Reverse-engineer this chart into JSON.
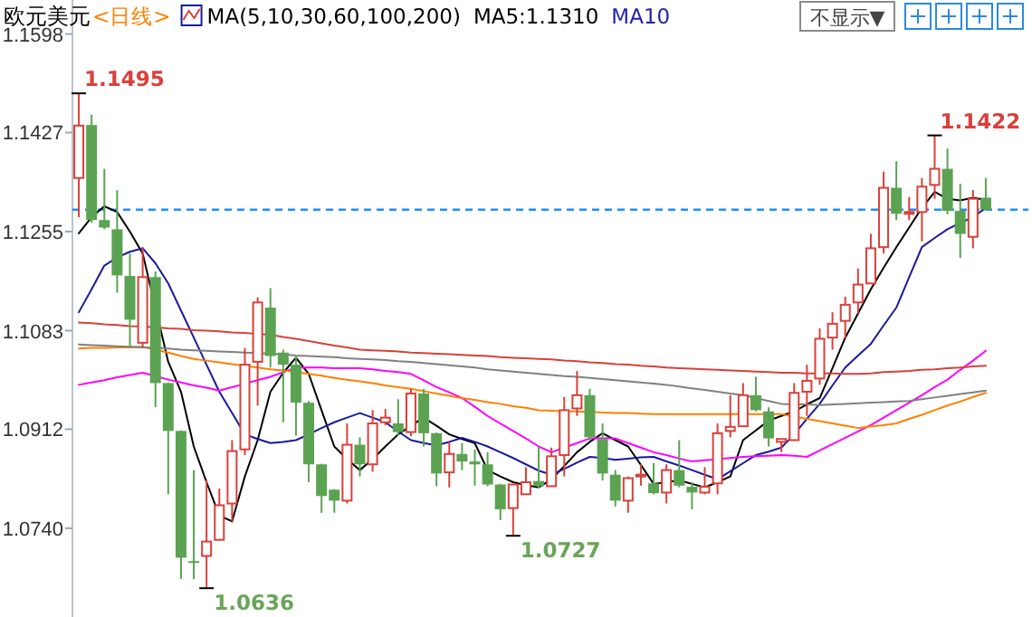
{
  "chart_data": {
    "type": "candlestick",
    "title": "欧元美元",
    "subtitle": "<日线>",
    "annotations": [
      "MA(5,10,30,60,100,200)",
      "MA5:1.1310",
      "MA10",
      "不显示▼",
      "1.1495",
      "1.0636",
      "1.0727",
      "1.1422"
    ],
    "categories": [
      null,
      null,
      null,
      null,
      null,
      null,
      null,
      null,
      null,
      null,
      null,
      null,
      null,
      null,
      null,
      null,
      null,
      null,
      null,
      null,
      null,
      null,
      null,
      null,
      null,
      null,
      null,
      null,
      null,
      null,
      null,
      null,
      null,
      null,
      null,
      null,
      null,
      null,
      null,
      null,
      null,
      null,
      null,
      null,
      null,
      null,
      null,
      null,
      null,
      null,
      null,
      null,
      null,
      null,
      null,
      null,
      null,
      null,
      null,
      null,
      null,
      null,
      null,
      null,
      null,
      null,
      null,
      null,
      null,
      null,
      null,
      null
    ],
    "ohlc": [
      [
        1.1348,
        1.1495,
        1.128,
        1.1439
      ],
      [
        1.144,
        1.1458,
        1.127,
        1.1275
      ],
      [
        1.1275,
        1.1364,
        1.1259,
        1.1262
      ],
      [
        1.1259,
        1.1327,
        1.1149,
        1.1179
      ],
      [
        1.1178,
        1.1217,
        1.1055,
        1.1102
      ],
      [
        1.1062,
        1.1228,
        1.1055,
        1.1176
      ],
      [
        1.1176,
        1.1186,
        1.095,
        1.0992
      ],
      [
        1.0992,
        1.0993,
        1.0799,
        1.0909
      ],
      [
        1.0909,
        1.091,
        1.0652,
        1.0689
      ],
      [
        1.0683,
        1.0841,
        1.0652,
        1.068
      ],
      [
        1.0692,
        1.0825,
        1.0636,
        1.0717
      ],
      [
        1.072,
        1.0809,
        1.0719,
        1.078
      ],
      [
        1.0783,
        1.0893,
        1.0752,
        1.0874
      ],
      [
        1.0877,
        1.1053,
        1.0867,
        1.1024
      ],
      [
        1.1029,
        1.1141,
        1.0953,
        1.1132
      ],
      [
        1.1123,
        1.1157,
        1.1019,
        1.1039
      ],
      [
        1.1045,
        1.105,
        1.0924,
        1.1024
      ],
      [
        1.1024,
        1.1039,
        1.0901,
        1.0958
      ],
      [
        1.0958,
        1.0961,
        1.082,
        1.0851
      ],
      [
        1.0851,
        1.0852,
        1.0767,
        1.0796
      ],
      [
        1.0807,
        1.0808,
        1.0767,
        1.0788
      ],
      [
        1.0788,
        1.0922,
        1.0783,
        1.0885
      ],
      [
        1.0885,
        1.0898,
        1.083,
        1.0851
      ],
      [
        1.0851,
        1.0945,
        1.0838,
        1.0922
      ],
      [
        1.0924,
        1.0947,
        1.0919,
        1.0932
      ],
      [
        1.0922,
        1.0964,
        1.0901,
        1.0907
      ],
      [
        1.0907,
        1.0982,
        1.09,
        1.0974
      ],
      [
        1.0974,
        1.0982,
        1.0882,
        1.0905
      ],
      [
        1.0905,
        1.0906,
        1.0813,
        1.0835
      ],
      [
        1.0837,
        1.089,
        1.0811,
        1.0869
      ],
      [
        1.0869,
        1.0888,
        1.0841,
        1.0856
      ],
      [
        1.0856,
        1.0877,
        1.0814,
        1.0851
      ],
      [
        1.0851,
        1.0872,
        1.0813,
        1.0816
      ],
      [
        1.0816,
        1.0817,
        1.0754,
        1.0773
      ],
      [
        1.0775,
        1.0817,
        1.0727,
        1.0816
      ],
      [
        1.0799,
        1.0846,
        1.0798,
        1.082
      ],
      [
        1.0822,
        1.0882,
        1.0809,
        1.0813
      ],
      [
        1.0813,
        1.088,
        1.0812,
        1.0865
      ],
      [
        1.0867,
        1.0968,
        1.083,
        1.0945
      ],
      [
        1.0948,
        1.1013,
        1.0935,
        1.0971
      ],
      [
        1.0971,
        1.0982,
        1.0893,
        1.0898
      ],
      [
        1.0895,
        1.0922,
        1.0823,
        1.0835
      ],
      [
        1.0833,
        1.0841,
        1.0778,
        1.0788
      ],
      [
        1.0788,
        1.083,
        1.0767,
        1.0827
      ],
      [
        1.083,
        1.0851,
        1.0814,
        1.0833
      ],
      [
        1.0818,
        1.0853,
        1.0799,
        1.0801
      ],
      [
        1.0802,
        1.0851,
        1.0783,
        1.0841
      ],
      [
        1.0841,
        1.0893,
        1.0811,
        1.0814
      ],
      [
        1.0812,
        1.082,
        1.0773,
        1.0802
      ],
      [
        1.0802,
        1.0846,
        1.0799,
        1.0812
      ],
      [
        1.0818,
        1.0922,
        1.0799,
        1.0905
      ],
      [
        1.0909,
        1.0971,
        1.0898,
        1.0916
      ],
      [
        1.0917,
        1.0992,
        1.0916,
        1.0971
      ],
      [
        1.0971,
        1.1003,
        1.0943,
        1.0945
      ],
      [
        1.0943,
        1.095,
        1.0882,
        1.0896
      ],
      [
        1.089,
        1.0895,
        1.0872,
        1.0895
      ],
      [
        1.0893,
        1.0992,
        1.0892,
        1.0975
      ],
      [
        1.0977,
        1.1024,
        1.0935,
        1.0996
      ],
      [
        1.1,
        1.1087,
        1.0989,
        1.1069
      ],
      [
        1.1071,
        1.1115,
        1.105,
        1.1095
      ],
      [
        1.11,
        1.1142,
        1.107,
        1.1128
      ],
      [
        1.1132,
        1.1191,
        1.1113,
        1.1163
      ],
      [
        1.1165,
        1.1251,
        1.1164,
        1.1226
      ],
      [
        1.1228,
        1.1359,
        1.1217,
        1.1331
      ],
      [
        1.1331,
        1.1377,
        1.1275,
        1.1286
      ],
      [
        1.1286,
        1.1315,
        1.1275,
        1.1289
      ],
      [
        1.1289,
        1.1348,
        1.1238,
        1.1333
      ],
      [
        1.1336,
        1.1422,
        1.1312,
        1.1364
      ],
      [
        1.1364,
        1.1399,
        1.1285,
        1.1291
      ],
      [
        1.1291,
        1.1338,
        1.1209,
        1.1251
      ],
      [
        1.1246,
        1.1327,
        1.1226,
        1.1312
      ],
      [
        1.1314,
        1.1348,
        1.1291,
        1.1293
      ]
    ],
    "series": [
      {
        "type": "line",
        "color": "#000000",
        "values": [
          1.1252,
          1.128,
          1.1299,
          1.1289,
          1.1255,
          1.1217,
          null,
          1.1029,
          1.0977,
          1.0882,
          1.082,
          1.0762,
          1.0752,
          1.083,
          1.0893,
          1.0977,
          1.101,
          1.1036,
          1.1008,
          1.0945,
          1.0882,
          1.086,
          1.0841,
          1.086,
          1.0882,
          1.0903,
          1.0918,
          1.0932,
          1.0918,
          1.0903,
          1.0895,
          1.0888,
          1.0841,
          1.083,
          1.082,
          1.0815,
          1.0811,
          1.0825,
          1.0848,
          1.0872,
          1.089,
          1.0905,
          1.0893,
          1.0882,
          1.085,
          1.0817,
          1.082,
          1.0823,
          1.0817,
          1.0811,
          1.082,
          1.083,
          1.0893,
          1.091,
          1.0927,
          1.0935,
          1.0943,
          1.0955,
          1.0966,
          1.1018,
          1.1071,
          1.1113,
          1.1155,
          1.1192,
          1.1228,
          1.1262,
          1.1296,
          1.1324,
          1.1312,
          1.1309,
          1.1314,
          1.131
        ]
      },
      {
        "type": "line",
        "color": "#1a1a9c",
        "values": [
          1.1115,
          1.1155,
          1.1196,
          1.121,
          1.122,
          1.1226,
          1.12,
          1.1165,
          1.1118,
          1.1071,
          1.1024,
          1.0977,
          1.094,
          1.0903,
          1.0895,
          1.0888,
          1.089,
          1.0893,
          1.0903,
          1.0914,
          1.0924,
          1.0932,
          1.094,
          1.0932,
          1.0924,
          1.0908,
          1.0893,
          1.0888,
          1.0884,
          1.089,
          1.0897,
          1.089,
          1.0882,
          1.0872,
          1.0862,
          1.0851,
          1.084,
          1.0833,
          1.0843,
          1.0854,
          1.0864,
          1.0862,
          1.0859,
          1.0861,
          1.0863,
          1.0864,
          1.0856,
          1.0849,
          1.0841,
          1.0833,
          1.0825,
          1.0839,
          1.0853,
          1.0867,
          1.0873,
          1.088,
          1.0903,
          1.093,
          1.0956,
          1.0988,
          1.1019,
          1.104,
          1.106,
          1.1092,
          1.1123,
          1.1176,
          1.1228,
          1.1244,
          1.1259,
          1.127,
          1.128,
          1.1296
        ]
      },
      {
        "type": "line",
        "color": "#ff00ff",
        "values": [
          1.0989,
          1.0993,
          1.0997,
          1.1002,
          1.1006,
          1.101,
          1.1004,
          1.0998,
          1.0993,
          1.0988,
          1.0984,
          1.0979,
          1.0985,
          1.0991,
          1.0997,
          1.1003,
          1.1011,
          1.1019,
          1.1019,
          1.1019,
          1.1018,
          1.1018,
          1.1018,
          1.1016,
          1.1013,
          1.1011,
          1.1008,
          1.0997,
          1.0985,
          1.0976,
          1.0966,
          1.0951,
          1.0935,
          1.0922,
          1.0909,
          1.0896,
          1.0882,
          1.0872,
          1.088,
          1.0888,
          1.0896,
          1.0896,
          1.0896,
          1.0888,
          1.088,
          1.0872,
          1.0867,
          1.0861,
          1.0856,
          1.0858,
          1.086,
          1.0862,
          1.0864,
          1.0865,
          1.0866,
          1.0867,
          1.0866,
          1.0864,
          1.0875,
          1.0886,
          1.0897,
          1.0908,
          1.0919,
          1.0932,
          1.0945,
          1.0958,
          1.0971,
          1.0985,
          1.0998,
          1.1015,
          1.1031,
          1.1048
        ]
      },
      {
        "type": "line",
        "color": "#ff8000",
        "values": [
          1.1052,
          1.1053,
          1.1053,
          1.1054,
          1.1054,
          1.1055,
          1.105,
          1.1045,
          1.1039,
          1.1034,
          1.1031,
          1.1028,
          1.1025,
          1.1022,
          1.1019,
          1.1016,
          1.1014,
          1.1011,
          1.1008,
          1.1005,
          1.1001,
          1.0998,
          1.0995,
          1.0992,
          1.0988,
          1.0985,
          1.0982,
          1.0978,
          1.0974,
          1.097,
          1.0966,
          1.0963,
          1.0959,
          1.0956,
          1.0952,
          1.0949,
          1.0945,
          1.0944,
          1.0943,
          1.0943,
          1.0942,
          1.0941,
          1.094,
          1.094,
          1.0939,
          1.0938,
          1.0938,
          1.0938,
          1.0938,
          1.0938,
          1.0938,
          1.0938,
          1.0938,
          1.0938,
          1.0938,
          1.0938,
          1.0934,
          1.093,
          1.0926,
          1.0922,
          1.0918,
          1.0914,
          1.0917,
          1.0919,
          1.0922,
          1.093,
          1.0937,
          1.0945,
          1.0953,
          1.096,
          1.0968,
          1.0975
        ]
      },
      {
        "type": "line",
        "color": "#808080",
        "values": [
          1.1059,
          1.1058,
          1.1057,
          1.1056,
          1.1055,
          1.1054,
          1.1053,
          1.1052,
          1.105,
          1.1049,
          1.1048,
          1.1047,
          1.1046,
          1.1045,
          1.1044,
          1.1043,
          1.1042,
          1.104,
          1.1039,
          1.1038,
          1.1037,
          1.1035,
          1.1034,
          1.1033,
          1.1032,
          1.103,
          1.1029,
          1.1027,
          1.1025,
          1.1023,
          1.1021,
          1.1019,
          1.1016,
          1.1014,
          1.1012,
          1.101,
          1.1008,
          1.1006,
          1.1004,
          1.1003,
          1.1001,
          1.0999,
          1.0997,
          1.0995,
          1.0993,
          1.0991,
          1.0989,
          1.0986,
          1.0983,
          1.098,
          1.0977,
          1.0974,
          1.0971,
          1.0966,
          1.0961,
          1.0956,
          1.0955,
          1.0955,
          1.0954,
          1.0955,
          1.0956,
          1.0957,
          1.0958,
          1.0959,
          1.096,
          1.0961,
          1.0964,
          1.0967,
          1.097,
          1.0973,
          1.0976,
          1.0979
        ]
      },
      {
        "type": "line",
        "color": "#d9403a",
        "values": [
          1.1097,
          1.1096,
          1.1094,
          1.1093,
          1.1091,
          1.109,
          1.1089,
          1.1087,
          1.1086,
          1.1084,
          1.1083,
          1.1082,
          1.108,
          1.1079,
          1.1077,
          1.1076,
          1.1072,
          1.1069,
          1.1065,
          1.1061,
          1.1057,
          1.1054,
          1.105,
          1.1049,
          1.1048,
          1.1047,
          1.1045,
          1.1044,
          1.1043,
          1.1042,
          1.1041,
          1.104,
          1.1039,
          1.1037,
          1.1036,
          1.1035,
          1.1034,
          1.1033,
          1.1031,
          1.103,
          1.1028,
          1.1027,
          1.1025,
          1.1024,
          1.1022,
          1.1021,
          1.1019,
          1.1018,
          1.1017,
          1.1016,
          1.1015,
          1.1014,
          1.1013,
          1.1012,
          1.1011,
          1.101,
          1.101,
          1.1009,
          1.1009,
          1.1009,
          1.1008,
          1.1008,
          1.1009,
          1.1011,
          1.1012,
          1.1013,
          1.1015,
          1.1016,
          1.1018,
          1.1019,
          1.1021,
          1.1022
        ]
      }
    ],
    "ylim": [
      1.0586,
      1.1657
    ],
    "yticks": [
      {
        "value": 1.074,
        "label": "1.0740"
      },
      1.0912,
      1.1083,
      1.1255,
      1.1427,
      1.1598
    ],
    "tick_labels": "y",
    "ref_lines": [
      {
        "axis": "y",
        "value": 1.1293,
        "color": "#1e90ff",
        "line_style": "dashed"
      }
    ]
  }
}
